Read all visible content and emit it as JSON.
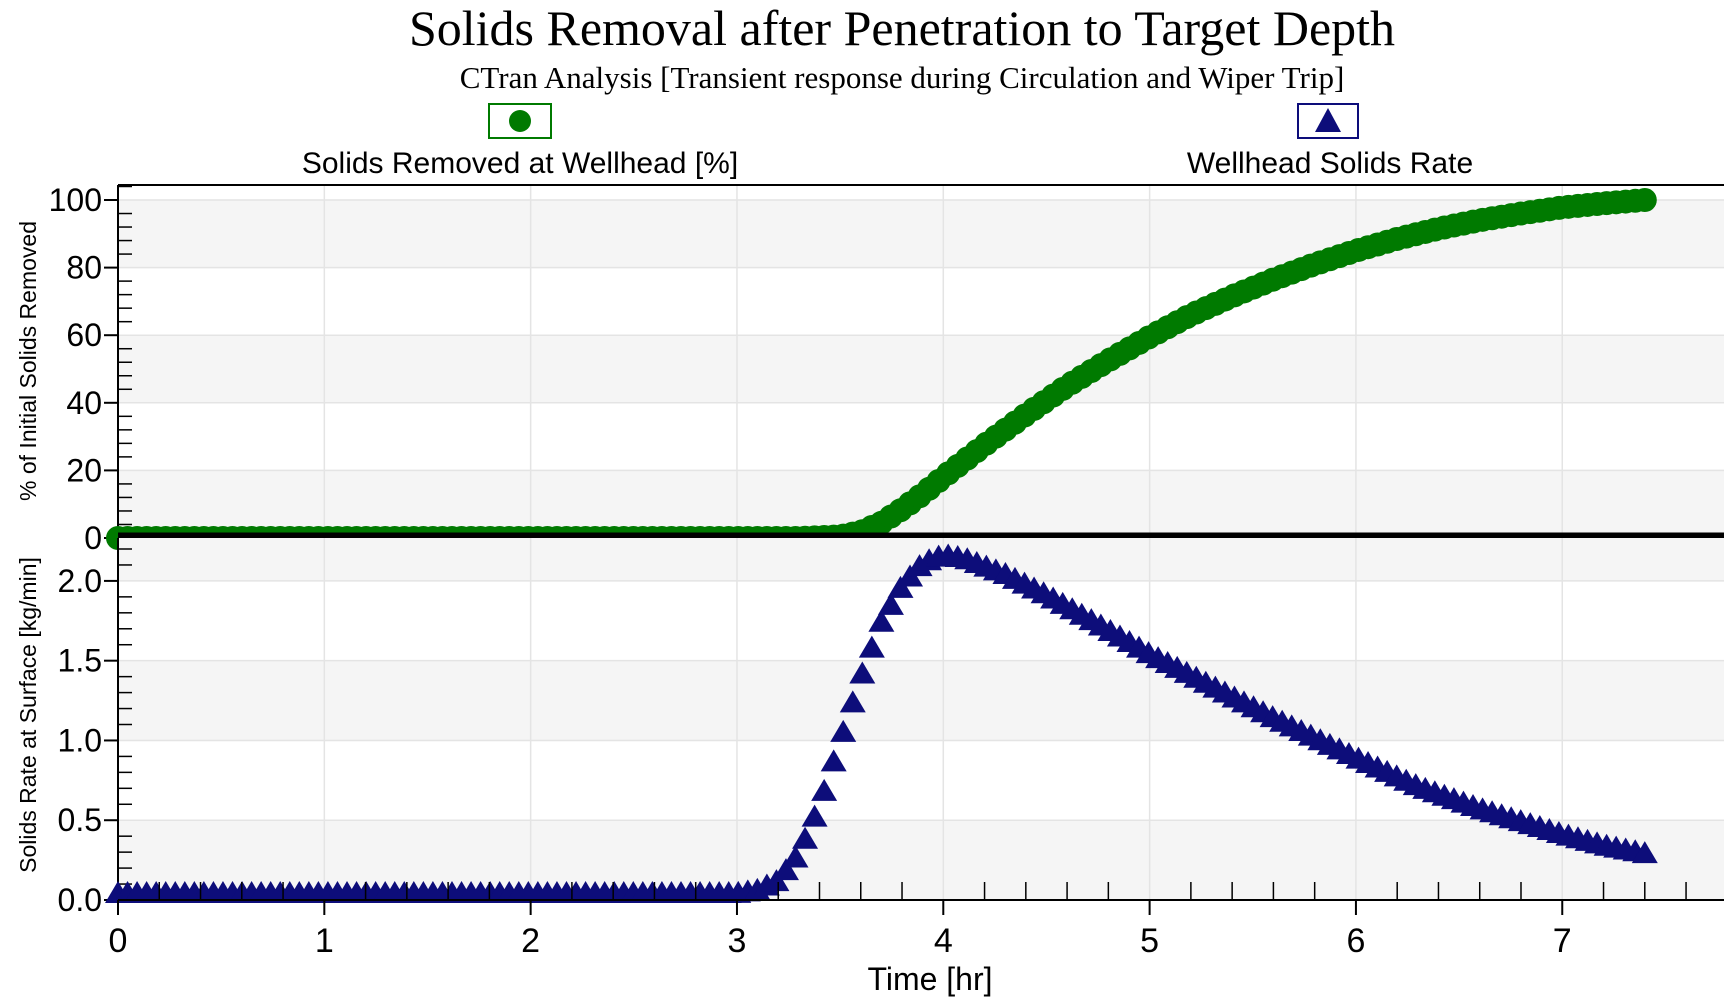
{
  "chart_data": [
    {
      "type": "scatter",
      "panel": "top",
      "title": "Solids Removal after Penetration to Target Depth",
      "subtitle": "CTran Analysis [Transient response during Circulation and Wiper Trip]",
      "ylabel": "% of Initial Solids Removed",
      "xlabel": "Time [hr]",
      "xlim": [
        0,
        7.75
      ],
      "ylim": [
        0,
        100
      ],
      "y_ticks": [
        0,
        20,
        40,
        60,
        80,
        100
      ],
      "x_ticks": [
        0,
        1,
        2,
        3,
        4,
        5,
        6,
        7
      ],
      "grid": true,
      "legend_position": "top-left",
      "series": [
        {
          "name": "Solids Removed at Wellhead [%]",
          "color": "#007a00",
          "marker": "circle",
          "x": [
            0,
            0.5,
            1,
            1.5,
            2,
            2.5,
            3,
            3.3,
            3.5,
            3.6,
            3.7,
            3.8,
            3.9,
            4.0,
            4.2,
            4.4,
            4.6,
            4.8,
            5.0,
            5.2,
            5.4,
            5.6,
            5.8,
            6.0,
            6.2,
            6.4,
            6.6,
            6.8,
            7.0,
            7.2,
            7.4
          ],
          "y": [
            0,
            0,
            0,
            0,
            0,
            0,
            0,
            0,
            0.5,
            1.8,
            4.5,
            8.5,
            13,
            18,
            27.5,
            36.5,
            45,
            52.5,
            59.5,
            66,
            71.5,
            76.5,
            81,
            85,
            88.5,
            91.5,
            94,
            96,
            97.8,
            99,
            100
          ]
        }
      ]
    },
    {
      "type": "scatter",
      "panel": "bottom",
      "ylabel": "Solids Rate at Surface [kg/min]",
      "xlabel": "Time [hr]",
      "xlim": [
        0,
        7.75
      ],
      "ylim": [
        0,
        2.2
      ],
      "y_ticks": [
        "0.0",
        "0.5",
        "1.0",
        "1.5",
        "2.0"
      ],
      "x_ticks": [
        "0",
        "1",
        "2",
        "3",
        "4",
        "5",
        "6",
        "7"
      ],
      "grid": true,
      "legend_position": "top-right",
      "series": [
        {
          "name": "Wellhead Solids Rate",
          "color": "#0d0d7a",
          "marker": "triangle",
          "x": [
            0,
            0.5,
            1,
            1.5,
            2,
            2.5,
            3,
            3.1,
            3.2,
            3.3,
            3.4,
            3.5,
            3.6,
            3.7,
            3.8,
            3.9,
            4.0,
            4.1,
            4.3,
            4.5,
            4.8,
            5.0,
            5.3,
            5.6,
            6.0,
            6.3,
            6.6,
            7.0,
            7.2,
            7.4
          ],
          "y": [
            0.05,
            0.05,
            0.05,
            0.05,
            0.05,
            0.05,
            0.05,
            0.07,
            0.13,
            0.3,
            0.6,
            1.0,
            1.4,
            1.75,
            1.98,
            2.12,
            2.17,
            2.15,
            2.05,
            1.92,
            1.7,
            1.55,
            1.35,
            1.15,
            0.9,
            0.72,
            0.58,
            0.42,
            0.35,
            0.3
          ]
        }
      ]
    }
  ]
}
